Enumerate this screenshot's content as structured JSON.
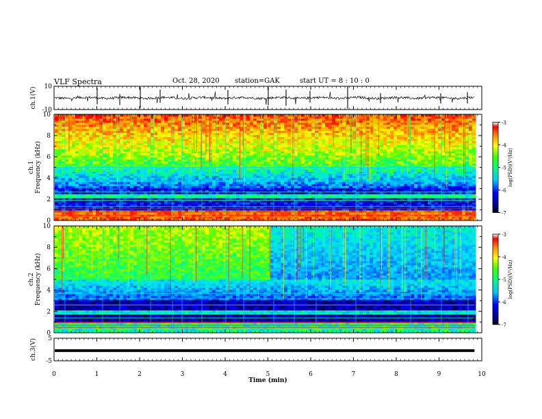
{
  "header": {
    "title": "VLF Spectra",
    "date": "Oct. 28, 2020",
    "station": "station=GAK",
    "start": "start  UT =   8  : 10 : 0"
  },
  "chart_data": [
    {
      "type": "line",
      "panel": "ch1-waveform",
      "ylabel": "ch.1(V)",
      "ylim": [
        -10,
        10
      ],
      "ytick_labels": [
        "10",
        "-10"
      ]
    },
    {
      "type": "heatmap",
      "panel": "ch1-spectrogram",
      "ylabel": "ch.1\nFrequency (kHz)",
      "ylim": [
        0,
        10
      ],
      "yticks": [
        0,
        2,
        4,
        6,
        8,
        10
      ],
      "colorbar": {
        "label": "log(PSD)(V²/Hz)",
        "range": [
          -7,
          -3
        ],
        "ticks": [
          "-3",
          "-4",
          "-5",
          "-6",
          "-7"
        ]
      },
      "lines_kHz": [
        0.5,
        0.8,
        1.1,
        1.3,
        1.9,
        2.2,
        2.4,
        2.7,
        3.7,
        4.4,
        5.0
      ]
    },
    {
      "type": "heatmap",
      "panel": "ch2-spectrogram",
      "ylabel": "ch.2\nFrequency (kHz)",
      "ylim": [
        0,
        10
      ],
      "yticks": [
        0,
        2,
        4,
        6,
        8,
        10
      ],
      "colorbar": {
        "label": "log(PSD)(V²/Hz)",
        "range": [
          -7,
          -3
        ],
        "ticks": [
          "-3",
          "-4",
          "-5",
          "-6",
          "-7"
        ]
      },
      "lines_kHz": [
        0.5,
        0.7,
        1.0,
        1.4,
        1.8,
        2.0,
        2.6,
        3.2,
        3.7,
        4.5,
        4.7
      ]
    },
    {
      "type": "line",
      "panel": "ch3-waveform",
      "ylabel": "ch.3(V)",
      "ylim": [
        -5,
        5
      ],
      "ytick_labels": [
        "5",
        "-5"
      ],
      "value_level": -0.5
    }
  ],
  "xaxis": {
    "label": "Time (min)",
    "range": [
      0,
      10
    ],
    "tick_labels": [
      "0",
      "1",
      "2",
      "3",
      "4",
      "5",
      "6",
      "7",
      "8",
      "9",
      "10"
    ],
    "data_end": 9.83
  }
}
